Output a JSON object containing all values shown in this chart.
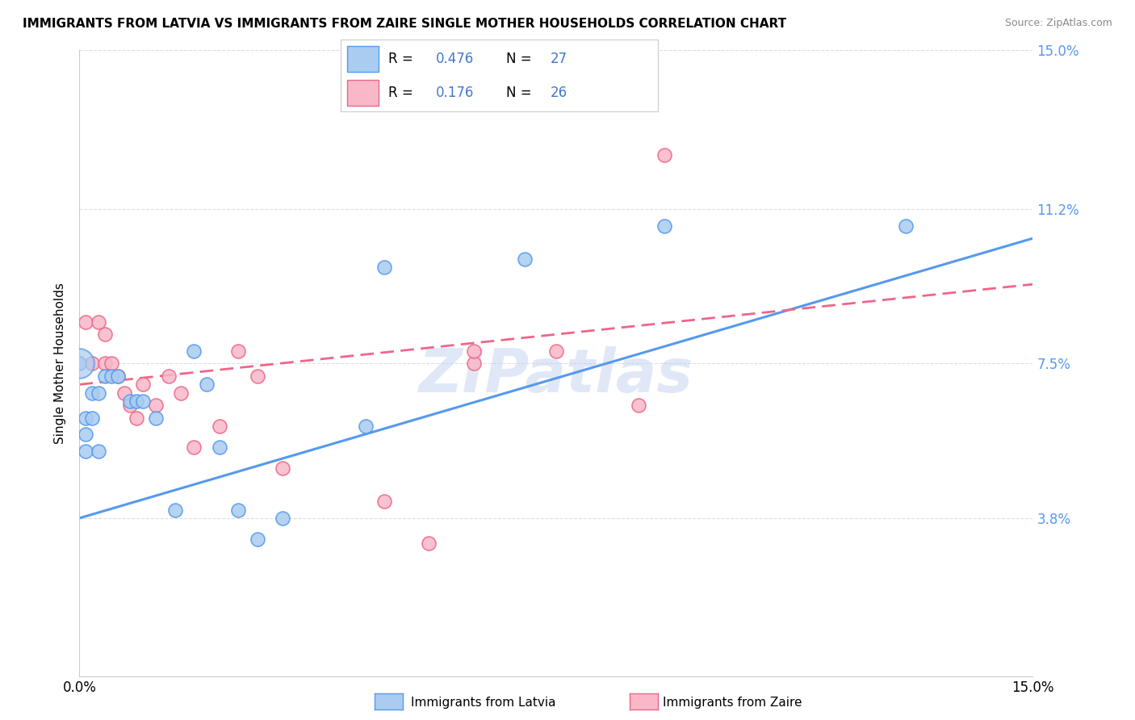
{
  "title": "IMMIGRANTS FROM LATVIA VS IMMIGRANTS FROM ZAIRE SINGLE MOTHER HOUSEHOLDS CORRELATION CHART",
  "source": "Source: ZipAtlas.com",
  "ylabel": "Single Mother Households",
  "xlim": [
    0.0,
    0.15
  ],
  "ylim": [
    0.0,
    0.15
  ],
  "yticks": [
    0.038,
    0.075,
    0.112,
    0.15
  ],
  "ytick_labels": [
    "3.8%",
    "7.5%",
    "11.2%",
    "15.0%"
  ],
  "latvia_R": "0.476",
  "latvia_N": "27",
  "zaire_R": "0.176",
  "zaire_N": "26",
  "latvia_color": "#aaccf0",
  "zaire_color": "#f8b8c8",
  "latvia_line_color": "#5599ee",
  "zaire_line_color": "#ee6688",
  "value_color": "#4477cc",
  "watermark": "ZIPatlas",
  "latvia_line_x0": 0.0,
  "latvia_line_y0": 0.038,
  "latvia_line_x1": 0.15,
  "latvia_line_y1": 0.105,
  "zaire_line_x0": 0.0,
  "zaire_line_y0": 0.07,
  "zaire_line_x1": 0.15,
  "zaire_line_y1": 0.094,
  "latvia_x": [
    0.0,
    0.001,
    0.001,
    0.001,
    0.002,
    0.002,
    0.003,
    0.003,
    0.004,
    0.005,
    0.006,
    0.008,
    0.009,
    0.01,
    0.012,
    0.015,
    0.018,
    0.02,
    0.022,
    0.025,
    0.028,
    0.032,
    0.045,
    0.048,
    0.07,
    0.092,
    0.13
  ],
  "latvia_y": [
    0.075,
    0.054,
    0.058,
    0.062,
    0.062,
    0.068,
    0.054,
    0.068,
    0.072,
    0.072,
    0.072,
    0.066,
    0.066,
    0.066,
    0.062,
    0.04,
    0.078,
    0.07,
    0.055,
    0.04,
    0.033,
    0.038,
    0.06,
    0.098,
    0.1,
    0.108,
    0.108
  ],
  "zaire_x": [
    0.001,
    0.002,
    0.003,
    0.004,
    0.004,
    0.005,
    0.006,
    0.007,
    0.008,
    0.009,
    0.01,
    0.012,
    0.014,
    0.016,
    0.018,
    0.022,
    0.025,
    0.028,
    0.032,
    0.048,
    0.055,
    0.062,
    0.075,
    0.088,
    0.092,
    0.062
  ],
  "zaire_y": [
    0.085,
    0.075,
    0.085,
    0.082,
    0.075,
    0.075,
    0.072,
    0.068,
    0.065,
    0.062,
    0.07,
    0.065,
    0.072,
    0.068,
    0.055,
    0.06,
    0.078,
    0.072,
    0.05,
    0.042,
    0.032,
    0.075,
    0.078,
    0.065,
    0.125,
    0.078
  ]
}
